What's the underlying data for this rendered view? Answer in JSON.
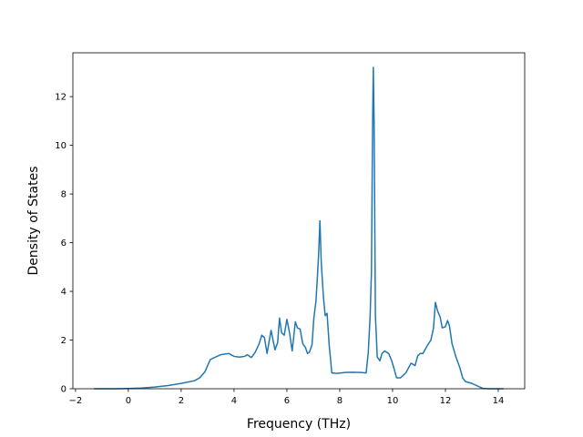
{
  "chart_data": {
    "type": "line",
    "title": "",
    "xlabel": "Frequency (THz)",
    "ylabel": "Density of States",
    "xlim": [
      -2.1,
      15.0
    ],
    "ylim": [
      0,
      13.8
    ],
    "xticks": [
      -2,
      0,
      2,
      4,
      6,
      8,
      10,
      12,
      14
    ],
    "yticks": [
      0,
      2,
      4,
      6,
      8,
      10,
      12
    ],
    "grid": false,
    "legend": "none",
    "series": [
      {
        "color": "#1f77b4",
        "points": [
          [
            -1.3,
            0.0
          ],
          [
            -0.5,
            0.0
          ],
          [
            0.0,
            0.01
          ],
          [
            0.5,
            0.03
          ],
          [
            1.0,
            0.07
          ],
          [
            1.5,
            0.13
          ],
          [
            2.0,
            0.22
          ],
          [
            2.5,
            0.33
          ],
          [
            2.7,
            0.45
          ],
          [
            2.9,
            0.7
          ],
          [
            3.0,
            0.95
          ],
          [
            3.1,
            1.2
          ],
          [
            3.3,
            1.3
          ],
          [
            3.5,
            1.4
          ],
          [
            3.8,
            1.45
          ],
          [
            4.0,
            1.33
          ],
          [
            4.2,
            1.3
          ],
          [
            4.4,
            1.33
          ],
          [
            4.5,
            1.4
          ],
          [
            4.65,
            1.28
          ],
          [
            4.8,
            1.5
          ],
          [
            4.95,
            1.85
          ],
          [
            5.05,
            2.2
          ],
          [
            5.15,
            2.1
          ],
          [
            5.25,
            1.45
          ],
          [
            5.4,
            2.4
          ],
          [
            5.55,
            1.6
          ],
          [
            5.65,
            1.9
          ],
          [
            5.72,
            2.9
          ],
          [
            5.8,
            2.3
          ],
          [
            5.9,
            2.2
          ],
          [
            6.0,
            2.85
          ],
          [
            6.1,
            2.3
          ],
          [
            6.2,
            1.55
          ],
          [
            6.32,
            2.75
          ],
          [
            6.4,
            2.5
          ],
          [
            6.5,
            2.45
          ],
          [
            6.6,
            1.85
          ],
          [
            6.7,
            1.7
          ],
          [
            6.78,
            1.45
          ],
          [
            6.85,
            1.5
          ],
          [
            6.95,
            1.8
          ],
          [
            7.02,
            2.9
          ],
          [
            7.1,
            3.6
          ],
          [
            7.15,
            4.5
          ],
          [
            7.2,
            5.5
          ],
          [
            7.25,
            6.9
          ],
          [
            7.3,
            5.2
          ],
          [
            7.38,
            3.8
          ],
          [
            7.45,
            3.0
          ],
          [
            7.52,
            3.1
          ],
          [
            7.6,
            1.8
          ],
          [
            7.7,
            0.65
          ],
          [
            7.9,
            0.63
          ],
          [
            8.2,
            0.67
          ],
          [
            8.5,
            0.68
          ],
          [
            8.8,
            0.67
          ],
          [
            9.0,
            0.65
          ],
          [
            9.08,
            1.5
          ],
          [
            9.15,
            3.0
          ],
          [
            9.2,
            4.8
          ],
          [
            9.24,
            10.5
          ],
          [
            9.27,
            13.2
          ],
          [
            9.3,
            11.0
          ],
          [
            9.35,
            3.0
          ],
          [
            9.42,
            1.3
          ],
          [
            9.52,
            1.15
          ],
          [
            9.6,
            1.45
          ],
          [
            9.7,
            1.55
          ],
          [
            9.85,
            1.45
          ],
          [
            9.95,
            1.2
          ],
          [
            10.05,
            0.85
          ],
          [
            10.15,
            0.45
          ],
          [
            10.3,
            0.45
          ],
          [
            10.5,
            0.65
          ],
          [
            10.7,
            1.05
          ],
          [
            10.85,
            0.95
          ],
          [
            10.95,
            1.35
          ],
          [
            11.05,
            1.45
          ],
          [
            11.15,
            1.45
          ],
          [
            11.3,
            1.75
          ],
          [
            11.45,
            2.0
          ],
          [
            11.55,
            2.5
          ],
          [
            11.62,
            3.55
          ],
          [
            11.7,
            3.2
          ],
          [
            11.8,
            2.95
          ],
          [
            11.88,
            2.5
          ],
          [
            12.0,
            2.55
          ],
          [
            12.08,
            2.8
          ],
          [
            12.15,
            2.6
          ],
          [
            12.25,
            1.85
          ],
          [
            12.4,
            1.3
          ],
          [
            12.55,
            0.85
          ],
          [
            12.65,
            0.45
          ],
          [
            12.75,
            0.3
          ],
          [
            13.0,
            0.22
          ],
          [
            13.2,
            0.12
          ],
          [
            13.4,
            0.02
          ],
          [
            13.6,
            0.0
          ],
          [
            14.0,
            0.0
          ],
          [
            14.2,
            0.0
          ]
        ]
      }
    ]
  }
}
